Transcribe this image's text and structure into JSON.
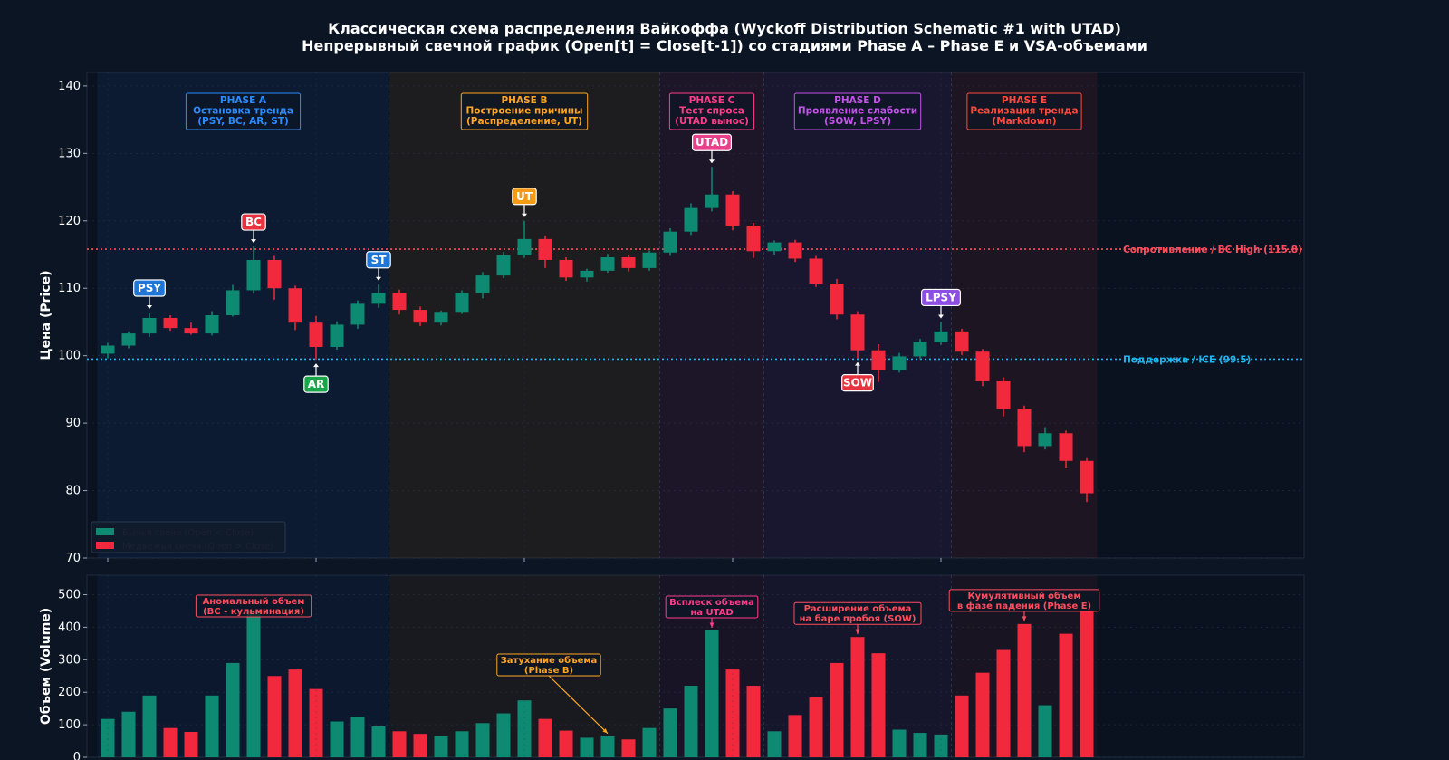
{
  "title": {
    "line1": "Классическая схема распределения Вайкоффа (Wyckoff Distribution Schematic #1 with UTAD)",
    "line2": "Непрерывный свечной график (Open[t] = Close[t-1]) со стадиями Phase A – Phase E и VSA-объемами"
  },
  "colors": {
    "background": "#0b1524",
    "panel": "#0a1220",
    "bull": "#0f8a72",
    "bear": "#f2293d",
    "resistance": "#ff4d5e",
    "support": "#1fb5ee",
    "phaseA": "#2b8cff",
    "phaseB": "#ffa524",
    "phaseC": "#ff3d8b",
    "phaseD": "#c453e8",
    "phaseE": "#ff4a3d"
  },
  "chart_data": [
    {
      "type": "candlestick",
      "ylabel": "Цена (Price)",
      "ylim": [
        70,
        142
      ],
      "yticks": [
        70,
        80,
        90,
        100,
        110,
        120,
        130,
        140
      ],
      "grid": true,
      "legend_position": "bottom-left",
      "legend": [
        {
          "label": "Бычья свеча (Open < Close)",
          "kind": "bull"
        },
        {
          "label": "Медвежья свеча (Open > Close)",
          "kind": "bear"
        }
      ],
      "candles": [
        {
          "open": 100.3,
          "high": 101.9,
          "low": 99.6,
          "close": 101.5
        },
        {
          "open": 101.5,
          "high": 103.6,
          "low": 101.1,
          "close": 103.3
        },
        {
          "open": 103.3,
          "high": 106.4,
          "low": 102.8,
          "close": 105.6
        },
        {
          "open": 105.6,
          "high": 106.0,
          "low": 103.7,
          "close": 104.1
        },
        {
          "open": 104.1,
          "high": 104.9,
          "low": 103.1,
          "close": 103.3
        },
        {
          "open": 103.3,
          "high": 106.6,
          "low": 103.0,
          "close": 106.0
        },
        {
          "open": 106.0,
          "high": 110.5,
          "low": 105.8,
          "close": 109.7
        },
        {
          "open": 109.7,
          "high": 116.2,
          "low": 109.2,
          "close": 114.2
        },
        {
          "open": 114.2,
          "high": 114.8,
          "low": 108.3,
          "close": 110.0
        },
        {
          "open": 110.0,
          "high": 110.4,
          "low": 103.8,
          "close": 104.9
        },
        {
          "open": 104.9,
          "high": 105.9,
          "low": 99.4,
          "close": 101.3
        },
        {
          "open": 101.3,
          "high": 105.1,
          "low": 100.9,
          "close": 104.6
        },
        {
          "open": 104.6,
          "high": 108.2,
          "low": 104.0,
          "close": 107.7
        },
        {
          "open": 107.7,
          "high": 110.6,
          "low": 107.1,
          "close": 109.3
        },
        {
          "open": 109.3,
          "high": 109.8,
          "low": 106.1,
          "close": 106.8
        },
        {
          "open": 106.8,
          "high": 107.3,
          "low": 104.4,
          "close": 104.9
        },
        {
          "open": 104.9,
          "high": 106.7,
          "low": 104.5,
          "close": 106.5
        },
        {
          "open": 106.5,
          "high": 109.7,
          "low": 106.2,
          "close": 109.3
        },
        {
          "open": 109.3,
          "high": 112.4,
          "low": 108.5,
          "close": 111.9
        },
        {
          "open": 111.9,
          "high": 115.4,
          "low": 111.5,
          "close": 114.9
        },
        {
          "open": 114.9,
          "high": 120.0,
          "low": 114.5,
          "close": 117.3
        },
        {
          "open": 117.3,
          "high": 117.8,
          "low": 113.0,
          "close": 114.2
        },
        {
          "open": 114.2,
          "high": 114.6,
          "low": 111.1,
          "close": 111.6
        },
        {
          "open": 111.6,
          "high": 112.9,
          "low": 111.0,
          "close": 112.6
        },
        {
          "open": 112.6,
          "high": 115.1,
          "low": 112.3,
          "close": 114.6
        },
        {
          "open": 114.6,
          "high": 115.0,
          "low": 112.5,
          "close": 113.0
        },
        {
          "open": 113.0,
          "high": 115.6,
          "low": 112.6,
          "close": 115.3
        },
        {
          "open": 115.3,
          "high": 118.9,
          "low": 114.8,
          "close": 118.4
        },
        {
          "open": 118.4,
          "high": 122.6,
          "low": 117.9,
          "close": 121.9
        },
        {
          "open": 121.9,
          "high": 128.0,
          "low": 121.4,
          "close": 123.9
        },
        {
          "open": 123.9,
          "high": 124.4,
          "low": 118.6,
          "close": 119.3
        },
        {
          "open": 119.3,
          "high": 119.7,
          "low": 114.5,
          "close": 115.5
        },
        {
          "open": 115.5,
          "high": 117.1,
          "low": 115.0,
          "close": 116.8
        },
        {
          "open": 116.8,
          "high": 117.2,
          "low": 113.9,
          "close": 114.4
        },
        {
          "open": 114.4,
          "high": 114.8,
          "low": 110.2,
          "close": 110.7
        },
        {
          "open": 110.7,
          "high": 111.4,
          "low": 105.4,
          "close": 106.1
        },
        {
          "open": 106.1,
          "high": 106.6,
          "low": 99.6,
          "close": 100.8
        },
        {
          "open": 100.8,
          "high": 101.7,
          "low": 96.1,
          "close": 97.9
        },
        {
          "open": 97.9,
          "high": 100.4,
          "low": 97.5,
          "close": 99.9
        },
        {
          "open": 99.9,
          "high": 102.5,
          "low": 99.5,
          "close": 102.0
        },
        {
          "open": 102.0,
          "high": 105.0,
          "low": 101.6,
          "close": 103.6
        },
        {
          "open": 103.6,
          "high": 104.0,
          "low": 100.1,
          "close": 100.6
        },
        {
          "open": 100.6,
          "high": 101.0,
          "low": 95.5,
          "close": 96.2
        },
        {
          "open": 96.2,
          "high": 96.8,
          "low": 91.0,
          "close": 92.1
        },
        {
          "open": 92.1,
          "high": 92.6,
          "low": 85.7,
          "close": 86.6
        },
        {
          "open": 86.6,
          "high": 89.4,
          "low": 86.1,
          "close": 88.5
        },
        {
          "open": 88.5,
          "high": 88.9,
          "low": 83.3,
          "close": 84.4
        },
        {
          "open": 84.4,
          "high": 84.8,
          "low": 78.3,
          "close": 79.6
        }
      ],
      "levels": [
        {
          "label": "Сопротивление / BC High (115.8)",
          "value": 115.8,
          "kind": "resistance"
        },
        {
          "label": "Поддержка / ICE (99.5)",
          "value": 99.5,
          "kind": "support"
        }
      ],
      "phases": [
        {
          "name": "PHASE A",
          "desc": "Остановка тренда",
          "events": "(PSY, BC, AR, ST)",
          "start": 0,
          "end": 13,
          "color": "#2b8cff"
        },
        {
          "name": "PHASE B",
          "desc": "Построение причины",
          "events": "(Распределение, UT)",
          "start": 14,
          "end": 26,
          "color": "#ffa524"
        },
        {
          "name": "PHASE C",
          "desc": "Тест спроса",
          "events": "(UTAD вынос)",
          "start": 27,
          "end": 31,
          "color": "#ff3d8b"
        },
        {
          "name": "PHASE D",
          "desc": "Проявление слабости",
          "events": "(SOW, LPSY)",
          "start": 32,
          "end": 40,
          "color": "#c453e8"
        },
        {
          "name": "PHASE E",
          "desc": "Реализация тренда",
          "events": "(Markdown)",
          "start": 41,
          "end": 47,
          "color": "#ff4a3d"
        }
      ],
      "events": [
        {
          "label": "PSY",
          "index": 2,
          "pos": "above",
          "color": "#1f76d6"
        },
        {
          "label": "BC",
          "index": 7,
          "pos": "above",
          "color": "#e8323f"
        },
        {
          "label": "AR",
          "index": 10,
          "pos": "below",
          "color": "#19a64a"
        },
        {
          "label": "ST",
          "index": 13,
          "pos": "above",
          "color": "#1f76d6"
        },
        {
          "label": "UT",
          "index": 20,
          "pos": "above",
          "color": "#f59a14"
        },
        {
          "label": "UTAD",
          "index": 29,
          "pos": "above",
          "color": "#e8408a"
        },
        {
          "label": "SOW",
          "index": 36,
          "pos": "below",
          "color": "#e8323f"
        },
        {
          "label": "LPSY",
          "index": 40,
          "pos": "above",
          "color": "#8d4fe3"
        }
      ]
    },
    {
      "type": "bar",
      "ylabel": "Объем (Volume)",
      "ylim": [
        0,
        560
      ],
      "yticks": [
        0,
        100,
        200,
        300,
        400,
        500
      ],
      "volumes": [
        118,
        140,
        190,
        90,
        78,
        190,
        290,
        450,
        250,
        270,
        210,
        110,
        125,
        95,
        80,
        72,
        65,
        80,
        105,
        135,
        175,
        118,
        82,
        60,
        65,
        55,
        90,
        150,
        220,
        390,
        270,
        220,
        80,
        130,
        185,
        290,
        370,
        320,
        85,
        75,
        70,
        190,
        260,
        330,
        410,
        160,
        380,
        450
      ],
      "annotations": [
        {
          "lines": [
            "Аномальный объем",
            "(BC - кульминация)"
          ],
          "index": 7,
          "color": "#ff4d5e",
          "arrow": false
        },
        {
          "lines": [
            "Затухание объема",
            "(Phase B)"
          ],
          "index": 24,
          "color": "#ffa524",
          "arrow": true
        },
        {
          "lines": [
            "Всплеск объема",
            "на UTAD"
          ],
          "index": 29,
          "color": "#ff3d8b",
          "arrow": true
        },
        {
          "lines": [
            "Расширение объема",
            "на баре пробоя (SOW)"
          ],
          "index": 36,
          "color": "#ff4d5e",
          "arrow": true
        },
        {
          "lines": [
            "Кумулятивный объем",
            "в фазе падения (Phase E)"
          ],
          "index": 44,
          "color": "#ff4d5e",
          "arrow": true
        }
      ]
    }
  ]
}
